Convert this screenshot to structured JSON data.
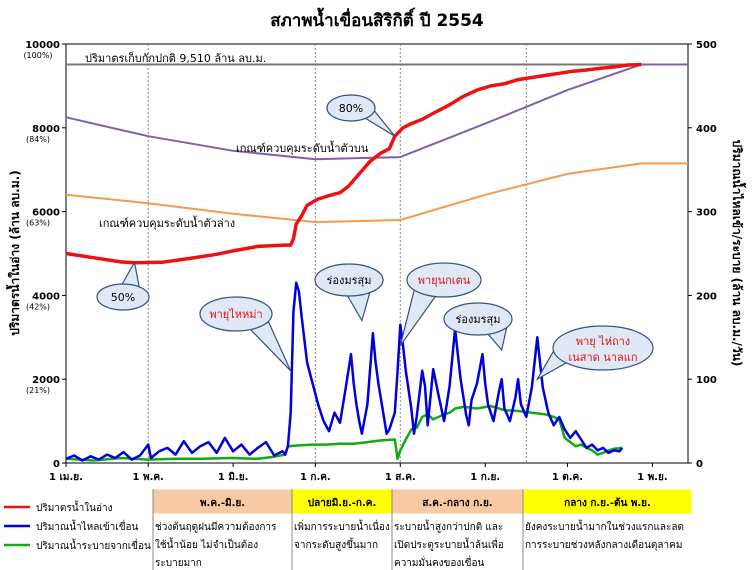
{
  "chart_data": {
    "type": "line",
    "title": "สภาพน้ำเขื่อนสิริกิติ์ ปี 2554",
    "ylabel_left": "ปริมาตรน้ำในอ่าง (ล้าน ลบ.ม.)",
    "ylabel_right": "ปริมาณน้ำไหลเข้า/ระบาย (ล้าน ลบ.ม./วัน)",
    "y_left_range": [
      0,
      10000
    ],
    "y_right_range": [
      0,
      500
    ],
    "y_left_ticks": [
      "0",
      "2000",
      "4000",
      "6000",
      "8000",
      "10000"
    ],
    "y_left_pct": [
      "(21%)",
      "(42%)",
      "(63%)",
      "(84%)",
      "(100%)"
    ],
    "y_right_ticks": [
      "0",
      "100",
      "200",
      "300",
      "400",
      "500"
    ],
    "x_ticks": [
      "1 เม.ย.",
      "1 พ.ค.",
      "1 มิ.ย.",
      "1 ก.ค.",
      "1 ส.ค.",
      "1 ก.ย.",
      "1 ต.ค.",
      "1 พ.ย."
    ],
    "x_range_days": [
      0,
      227
    ],
    "grid": false,
    "legend_position": "bottom-left",
    "annotations": {
      "normal_capacity": "ปริมาตรเก็บกักปกติ 9,510 ล้าน ลบ.ม.",
      "upper_rule": "เกณฑ์ควบคุมระดับน้ำตัวบน",
      "lower_rule": "เกณฑ์ควบคุมระดับน้ำตัวล่าง",
      "pct50": "50%",
      "pct80": "80%",
      "storm_haima": "พายุไหหม่า",
      "monsoon1": "ร่องมรสุม",
      "storm_nockten": "พายุนกเตน",
      "monsoon2": "ร่องมรสุม",
      "storm_last_line1": "พายุ ไห่ถาง",
      "storm_last_line2": "เนสาด นาลแก"
    },
    "normal_capacity_value": 9510,
    "series": [
      {
        "name": "ปริมาตรน้ำในอ่าง",
        "axis": "left",
        "color": "#ee1111",
        "points": [
          [
            0,
            5000
          ],
          [
            10,
            4900
          ],
          [
            20,
            4800
          ],
          [
            25,
            4780
          ],
          [
            35,
            4790
          ],
          [
            45,
            4880
          ],
          [
            55,
            4980
          ],
          [
            60,
            5050
          ],
          [
            70,
            5170
          ],
          [
            80,
            5200
          ],
          [
            82,
            5200
          ],
          [
            83,
            5350
          ],
          [
            84,
            5700
          ],
          [
            86,
            5900
          ],
          [
            88,
            6150
          ],
          [
            92,
            6300
          ],
          [
            97,
            6400
          ],
          [
            100,
            6450
          ],
          [
            103,
            6600
          ],
          [
            107,
            6900
          ],
          [
            111,
            7200
          ],
          [
            115,
            7400
          ],
          [
            118,
            7500
          ],
          [
            120,
            7800
          ],
          [
            123,
            8000
          ],
          [
            126,
            8100
          ],
          [
            130,
            8200
          ],
          [
            135,
            8380
          ],
          [
            140,
            8550
          ],
          [
            145,
            8750
          ],
          [
            150,
            8900
          ],
          [
            155,
            9000
          ],
          [
            160,
            9050
          ],
          [
            165,
            9150
          ],
          [
            170,
            9200
          ],
          [
            175,
            9250
          ],
          [
            180,
            9300
          ],
          [
            185,
            9350
          ],
          [
            190,
            9380
          ],
          [
            195,
            9420
          ],
          [
            200,
            9450
          ],
          [
            205,
            9500
          ],
          [
            210,
            9510
          ]
        ]
      },
      {
        "name": "ปริมาณน้ำไหลเข้าเขื่อน",
        "axis": "right",
        "color": "#0000dd",
        "points": [
          [
            0,
            5
          ],
          [
            3,
            9
          ],
          [
            6,
            3
          ],
          [
            9,
            8
          ],
          [
            12,
            4
          ],
          [
            15,
            10
          ],
          [
            18,
            6
          ],
          [
            21,
            13
          ],
          [
            24,
            4
          ],
          [
            27,
            9
          ],
          [
            30,
            22
          ],
          [
            31,
            6
          ],
          [
            34,
            14
          ],
          [
            37,
            18
          ],
          [
            40,
            10
          ],
          [
            43,
            26
          ],
          [
            46,
            12
          ],
          [
            49,
            20
          ],
          [
            52,
            25
          ],
          [
            55,
            12
          ],
          [
            58,
            30
          ],
          [
            61,
            14
          ],
          [
            64,
            22
          ],
          [
            67,
            10
          ],
          [
            70,
            18
          ],
          [
            73,
            25
          ],
          [
            76,
            9
          ],
          [
            79,
            14
          ],
          [
            80,
            10
          ],
          [
            81,
            20
          ],
          [
            82,
            60
          ],
          [
            83,
            180
          ],
          [
            84,
            215
          ],
          [
            85,
            205
          ],
          [
            86,
            175
          ],
          [
            88,
            120
          ],
          [
            90,
            95
          ],
          [
            92,
            70
          ],
          [
            94,
            50
          ],
          [
            96,
            38
          ],
          [
            98,
            60
          ],
          [
            100,
            48
          ],
          [
            102,
            88
          ],
          [
            104,
            130
          ],
          [
            105,
            95
          ],
          [
            106,
            70
          ],
          [
            107,
            50
          ],
          [
            108,
            35
          ],
          [
            110,
            70
          ],
          [
            112,
            155
          ],
          [
            113,
            120
          ],
          [
            114,
            95
          ],
          [
            116,
            55
          ],
          [
            117,
            35
          ],
          [
            118,
            40
          ],
          [
            120,
            60
          ],
          [
            121,
            110
          ],
          [
            122,
            165
          ],
          [
            123,
            140
          ],
          [
            124,
            110
          ],
          [
            126,
            65
          ],
          [
            127,
            35
          ],
          [
            128,
            55
          ],
          [
            130,
            110
          ],
          [
            131,
            92
          ],
          [
            132,
            45
          ],
          [
            134,
            112
          ],
          [
            136,
            80
          ],
          [
            138,
            50
          ],
          [
            140,
            92
          ],
          [
            142,
            160
          ],
          [
            143,
            130
          ],
          [
            144,
            100
          ],
          [
            146,
            58
          ],
          [
            147,
            45
          ],
          [
            148,
            75
          ],
          [
            150,
            95
          ],
          [
            152,
            130
          ],
          [
            153,
            95
          ],
          [
            154,
            70
          ],
          [
            156,
            50
          ],
          [
            158,
            85
          ],
          [
            159,
            100
          ],
          [
            160,
            65
          ],
          [
            162,
            50
          ],
          [
            164,
            78
          ],
          [
            165,
            100
          ],
          [
            166,
            70
          ],
          [
            168,
            55
          ],
          [
            170,
            90
          ],
          [
            172,
            150
          ],
          [
            173,
            120
          ],
          [
            174,
            90
          ],
          [
            176,
            60
          ],
          [
            178,
            45
          ],
          [
            180,
            55
          ],
          [
            182,
            40
          ],
          [
            184,
            30
          ],
          [
            186,
            38
          ],
          [
            188,
            28
          ],
          [
            190,
            18
          ],
          [
            192,
            22
          ],
          [
            194,
            15
          ],
          [
            196,
            18
          ],
          [
            198,
            12
          ],
          [
            200,
            15
          ],
          [
            202,
            14
          ],
          [
            203,
            18
          ]
        ]
      },
      {
        "name": "ปริมาณน้ำระบายจากเขื่อน",
        "axis": "right",
        "color": "#11aa11",
        "points": [
          [
            0,
            5
          ],
          [
            10,
            3
          ],
          [
            20,
            6
          ],
          [
            30,
            4
          ],
          [
            40,
            5
          ],
          [
            50,
            5
          ],
          [
            60,
            6
          ],
          [
            70,
            5
          ],
          [
            75,
            7
          ],
          [
            80,
            10
          ],
          [
            81,
            20
          ],
          [
            85,
            21
          ],
          [
            90,
            22
          ],
          [
            95,
            22
          ],
          [
            100,
            23
          ],
          [
            105,
            23
          ],
          [
            110,
            25
          ],
          [
            115,
            27
          ],
          [
            120,
            28
          ],
          [
            121,
            5
          ],
          [
            122,
            15
          ],
          [
            124,
            28
          ],
          [
            126,
            40
          ],
          [
            128,
            42
          ],
          [
            130,
            55
          ],
          [
            132,
            58
          ],
          [
            134,
            52
          ],
          [
            136,
            55
          ],
          [
            138,
            58
          ],
          [
            140,
            60
          ],
          [
            142,
            65
          ],
          [
            145,
            67
          ],
          [
            150,
            65
          ],
          [
            155,
            68
          ],
          [
            160,
            63
          ],
          [
            165,
            62
          ],
          [
            170,
            60
          ],
          [
            175,
            58
          ],
          [
            178,
            55
          ],
          [
            180,
            52
          ],
          [
            182,
            30
          ],
          [
            184,
            25
          ],
          [
            186,
            20
          ],
          [
            188,
            22
          ],
          [
            190,
            18
          ],
          [
            192,
            15
          ],
          [
            194,
            10
          ],
          [
            196,
            12
          ],
          [
            198,
            15
          ],
          [
            200,
            17
          ],
          [
            203,
            18
          ]
        ]
      },
      {
        "name": "เกณฑ์ควบคุมระดับน้ำตัวบน",
        "axis": "left",
        "color": "#8060aa",
        "points": [
          [
            0,
            8250
          ],
          [
            30,
            7800
          ],
          [
            61,
            7450
          ],
          [
            91,
            7250
          ],
          [
            122,
            7300
          ],
          [
            153,
            8100
          ],
          [
            183,
            8900
          ],
          [
            210,
            9510
          ],
          [
            227,
            9510
          ]
        ]
      },
      {
        "name": "เกณฑ์ควบคุมระดับน้ำตัวล่าง",
        "axis": "left",
        "color": "#f59a4d",
        "points": [
          [
            0,
            6400
          ],
          [
            30,
            6200
          ],
          [
            61,
            5950
          ],
          [
            91,
            5750
          ],
          [
            122,
            5800
          ],
          [
            153,
            6400
          ],
          [
            183,
            6900
          ],
          [
            210,
            7150
          ],
          [
            227,
            7150
          ]
        ]
      }
    ]
  },
  "legend": [
    {
      "label": "ปริมาตรน้ำในอ่าง",
      "color": "#ee1111"
    },
    {
      "label": "ปริมาณน้ำไหลเข้าเขื่อน",
      "color": "#0000dd"
    },
    {
      "label": "ปริมาณน้ำระบายจากเขื่อน",
      "color": "#11aa11"
    }
  ],
  "phases": [
    {
      "header": "พ.ค.-มิ.ย.",
      "header_bg": "#f9c9a4",
      "desc": [
        "ช่วงต้นฤดูฝนมีความต้องการ",
        "ใช้น้ำน้อย ไม่จำเป็นต้อง",
        "ระบายมาก"
      ]
    },
    {
      "header": "ปลายมิ.ย.-ก.ค.",
      "header_bg": "#ffff00",
      "desc": [
        "เพิ่มการระบายน้ำเนื่อง",
        "จากระดับสูงขึ้นมาก"
      ]
    },
    {
      "header": "ส.ค.-กลาง ก.ย.",
      "header_bg": "#f9c9a4",
      "desc": [
        "ระบายน้ำสูงกว่าปกติ และ",
        "เปิดประตูระบายน้ำล้นเพื่อ",
        "ความมั่นคงของเขื่อน"
      ]
    },
    {
      "header": "กลาง ก.ย.-ต้น พ.ย.",
      "header_bg": "#ffff00",
      "desc": [
        "ยังคงระบายน้ำมากในช่วงแรกและลด",
        "การระบายช่วงหลังกลางเดือนตุลาคม"
      ]
    }
  ],
  "colors": {
    "capacity_line": "#777777",
    "callout_fill": "#dfe9f6",
    "callout_stroke": "#34517a",
    "dotted_divider": "#888888",
    "storm_text": "#e01010"
  }
}
